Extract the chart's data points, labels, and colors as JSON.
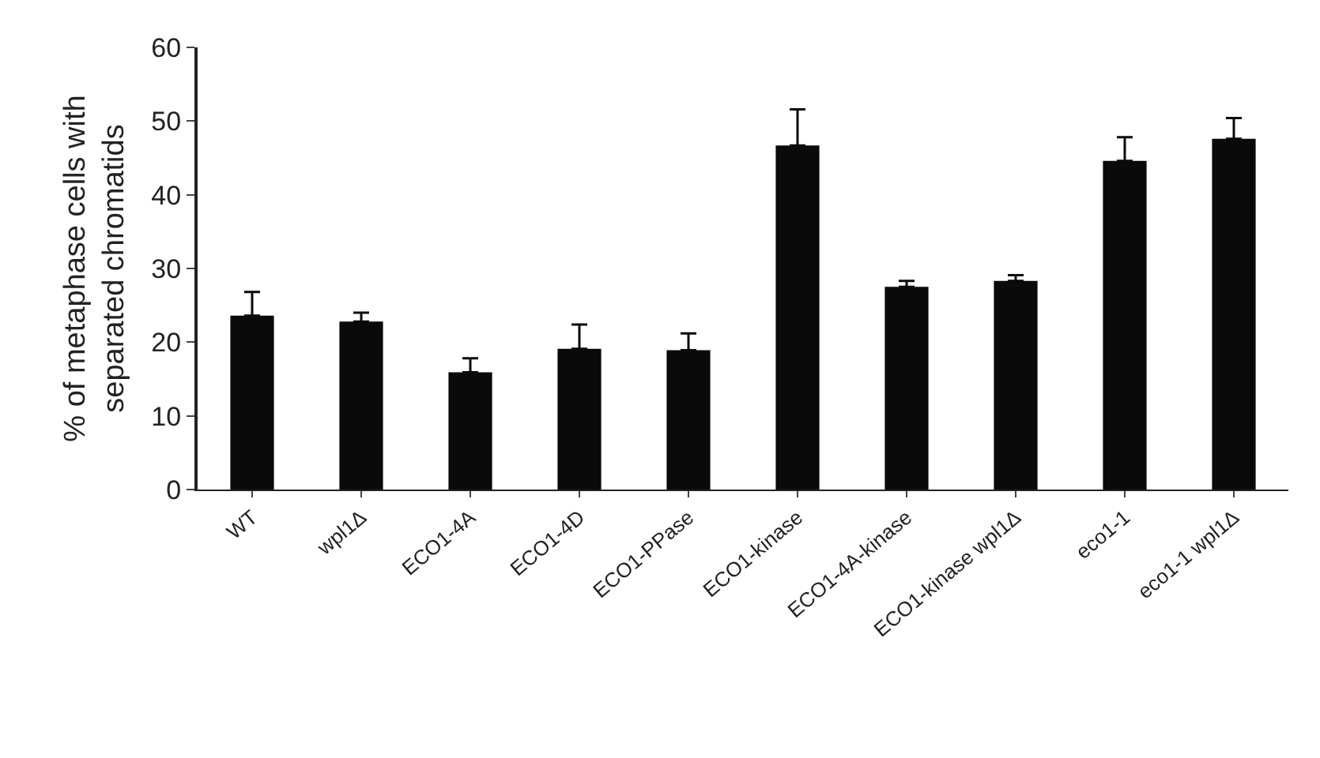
{
  "chart_data": {
    "type": "bar",
    "ylabel": "% of metaphase cells with\nseparated chromatids",
    "categories": [
      "WT",
      "wpl1Δ",
      "ECO1-4A",
      "ECO1-4D",
      "ECO1-PPase",
      "ECO1-kinase",
      "ECO1-4A-kinase",
      "ECO1-kinase wpl1Δ",
      "eco1-1",
      "eco1-1 wpl1Δ"
    ],
    "values": [
      23.6,
      22.8,
      15.9,
      19.1,
      18.9,
      46.7,
      27.5,
      28.3,
      44.6,
      47.6
    ],
    "errors": [
      [
        23.6,
        26.8
      ],
      [
        22.8,
        24.0
      ],
      [
        15.9,
        17.8
      ],
      [
        19.1,
        22.4
      ],
      [
        18.9,
        21.2
      ],
      [
        46.7,
        51.6
      ],
      [
        27.5,
        28.3
      ],
      [
        28.3,
        29.1
      ],
      [
        44.6,
        47.8
      ],
      [
        47.6,
        50.4
      ]
    ],
    "color": "#0a0a0a",
    "ylim": [
      0,
      60
    ],
    "yticks": [
      0,
      10,
      20,
      30,
      40,
      50,
      60
    ],
    "grid": false,
    "legend": false
  }
}
